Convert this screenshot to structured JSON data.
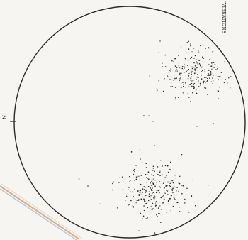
{
  "figure": {
    "north_label": "N",
    "corner_label": "VIBRATIONS",
    "background_color": "#f7f5f2",
    "ink_color": "#2b2b2b",
    "stroke_colors": [
      "#d8a06a",
      "#9ab4d6"
    ]
  }
}
